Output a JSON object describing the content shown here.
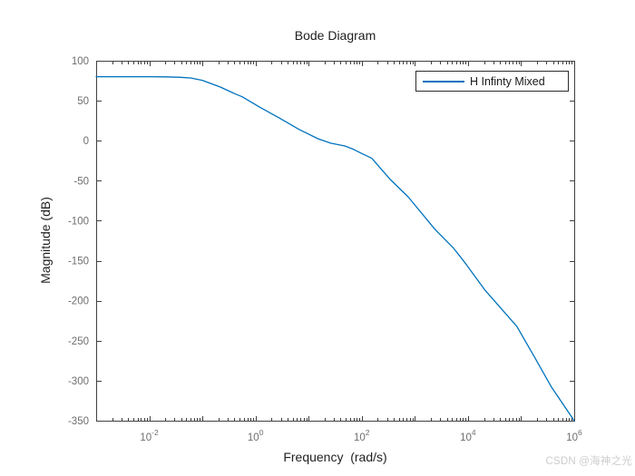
{
  "figure": {
    "title": "Bode Diagram",
    "xlabel": "Frequency  (rad/s)",
    "ylabel": "Magnitude (dB)",
    "watermark": "CSDN @海神之光"
  },
  "legend": {
    "position": "top-right",
    "entries": [
      {
        "label": "H Infinty Mixed",
        "color": "#0072BD"
      }
    ]
  },
  "colors": {
    "background": "#ffffff",
    "axis": "#404040",
    "tick_label": "#6e6e6e",
    "text": "#1f1f1f",
    "line": "#0072BD",
    "watermark": "#cccccc"
  },
  "chart_data": {
    "type": "line",
    "title": "Bode Diagram",
    "xlabel": "Frequency  (rad/s)",
    "ylabel": "Magnitude (dB)",
    "x_scale": "log10",
    "xlim": [
      0.001,
      1000000
    ],
    "ylim": [
      -350,
      100
    ],
    "grid": false,
    "legend_position": "top-right",
    "x_ticks_labeled_exponents": [
      -2,
      0,
      2,
      4,
      6
    ],
    "x_ticks_decade_exponents": [
      -3,
      -2,
      -1,
      0,
      1,
      2,
      3,
      4,
      5,
      6
    ],
    "y_ticks": [
      100,
      50,
      0,
      -50,
      -100,
      -150,
      -200,
      -250,
      -300,
      -350
    ],
    "series": [
      {
        "name": "H Infinty Mixed",
        "color": "#0072BD",
        "points": [
          [
            0.001,
            80
          ],
          [
            0.003,
            80
          ],
          [
            0.01,
            80
          ],
          [
            0.02,
            79.8
          ],
          [
            0.036,
            79.4
          ],
          [
            0.06,
            78.5
          ],
          [
            0.1,
            75.5
          ],
          [
            0.22,
            67
          ],
          [
            0.4,
            59
          ],
          [
            0.56,
            55
          ],
          [
            1.2,
            42
          ],
          [
            2.7,
            29
          ],
          [
            6.7,
            14
          ],
          [
            15,
            2.5
          ],
          [
            26,
            -3
          ],
          [
            48,
            -6.5
          ],
          [
            71,
            -11
          ],
          [
            100,
            -16
          ],
          [
            155,
            -22
          ],
          [
            250,
            -38
          ],
          [
            340,
            -48
          ],
          [
            745,
            -70
          ],
          [
            2400,
            -111
          ],
          [
            5300,
            -134
          ],
          [
            8900,
            -153
          ],
          [
            21000,
            -187
          ],
          [
            83000,
            -232
          ],
          [
            184000,
            -272
          ],
          [
            373000,
            -308
          ],
          [
            1000000,
            -350
          ]
        ]
      }
    ]
  }
}
